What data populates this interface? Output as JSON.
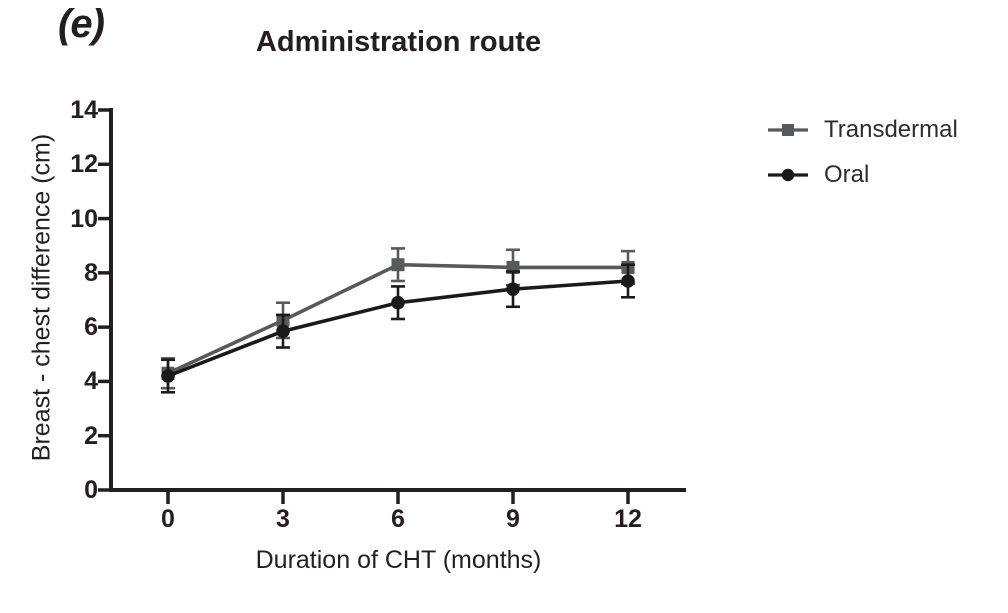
{
  "figure_label": "(e)",
  "title": "Administration route",
  "chart_data": {
    "type": "line",
    "title": "Administration route",
    "xlabel": "Duration of CHT (months)",
    "ylabel": "Breast - chest difference (cm)",
    "x": [
      0,
      3,
      6,
      9,
      12
    ],
    "xticks": [
      0,
      3,
      6,
      9,
      12
    ],
    "yticks": [
      0,
      2,
      4,
      6,
      8,
      10,
      12,
      14
    ],
    "xlim": [
      0,
      12
    ],
    "ylim": [
      0,
      14
    ],
    "grid": false,
    "legend_position": "right",
    "error_bars": true,
    "series": [
      {
        "name": "Transdermal",
        "marker": "square",
        "color": "#58595b",
        "values": [
          4.3,
          6.25,
          8.3,
          8.2,
          8.2
        ],
        "errors": [
          0.55,
          0.65,
          0.6,
          0.65,
          0.6
        ]
      },
      {
        "name": "Oral",
        "marker": "circle",
        "color": "#1a1a1a",
        "values": [
          4.2,
          5.85,
          6.9,
          7.4,
          7.7
        ],
        "errors": [
          0.6,
          0.6,
          0.6,
          0.65,
          0.6
        ]
      }
    ]
  },
  "colors": {
    "axis": "#231f20",
    "text": "#231f20",
    "background": "#ffffff"
  }
}
